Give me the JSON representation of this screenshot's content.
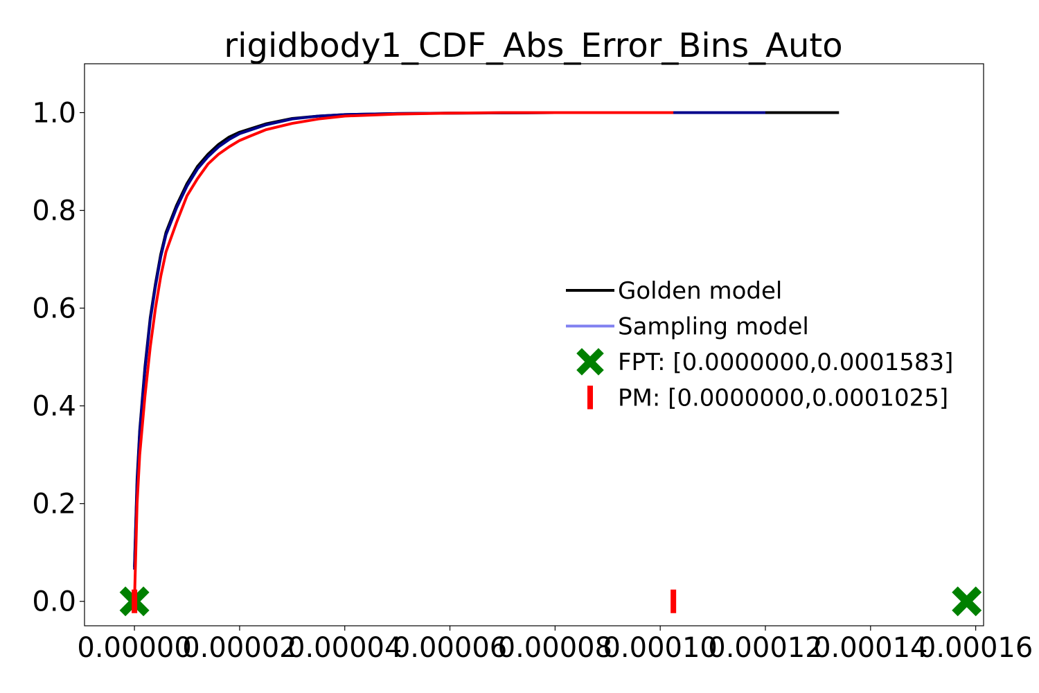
{
  "chart_data": {
    "type": "line",
    "title": "rigidbody1_CDF_Abs_Error_Bins_Auto",
    "xlabel": "",
    "ylabel": "",
    "xlim": [
      -9.5e-06,
      0.0001615
    ],
    "ylim": [
      -0.05,
      1.1
    ],
    "x_ticks": [
      0.0,
      2e-05,
      4e-05,
      6e-05,
      8e-05,
      0.0001,
      0.00012,
      0.00014,
      0.00016
    ],
    "x_tick_labels": [
      "0.00000",
      "0.00002",
      "0.00004",
      "0.00006",
      "0.00008",
      "0.00010",
      "0.00012",
      "0.00014",
      "0.00016"
    ],
    "y_ticks": [
      0.0,
      0.2,
      0.4,
      0.6,
      0.8,
      1.0
    ],
    "y_tick_labels": [
      "0.0",
      "0.2",
      "0.4",
      "0.6",
      "0.8",
      "1.0"
    ],
    "grid": false,
    "legend_position": "center-right",
    "series": [
      {
        "name": "Golden model",
        "kind": "line",
        "color": "#000000",
        "points": [
          [
            0.0,
            0.07
          ],
          [
            5e-07,
            0.25
          ],
          [
            1e-06,
            0.35
          ],
          [
            2e-06,
            0.48
          ],
          [
            3e-06,
            0.58
          ],
          [
            4e-06,
            0.65
          ],
          [
            5e-06,
            0.71
          ],
          [
            6e-06,
            0.755
          ],
          [
            8e-06,
            0.81
          ],
          [
            1e-05,
            0.855
          ],
          [
            1.2e-05,
            0.89
          ],
          [
            1.4e-05,
            0.915
          ],
          [
            1.6e-05,
            0.935
          ],
          [
            1.8e-05,
            0.95
          ],
          [
            2e-05,
            0.96
          ],
          [
            2.5e-05,
            0.977
          ],
          [
            3e-05,
            0.988
          ],
          [
            3.5e-05,
            0.993
          ],
          [
            4e-05,
            0.996
          ],
          [
            5e-05,
            0.998
          ],
          [
            6e-05,
            0.999
          ],
          [
            8e-05,
            1.0
          ],
          [
            0.0001,
            1.0
          ],
          [
            0.000134,
            1.0
          ]
        ]
      },
      {
        "name": "Sampling model",
        "kind": "line",
        "color": "#00008b",
        "points": [
          [
            0.0,
            0.065
          ],
          [
            5e-07,
            0.24
          ],
          [
            1e-06,
            0.345
          ],
          [
            2e-06,
            0.475
          ],
          [
            3e-06,
            0.575
          ],
          [
            4e-06,
            0.645
          ],
          [
            5e-06,
            0.705
          ],
          [
            6e-06,
            0.75
          ],
          [
            8e-06,
            0.805
          ],
          [
            1e-05,
            0.85
          ],
          [
            1.2e-05,
            0.885
          ],
          [
            1.4e-05,
            0.91
          ],
          [
            1.6e-05,
            0.93
          ],
          [
            1.8e-05,
            0.945
          ],
          [
            2e-05,
            0.957
          ],
          [
            2.5e-05,
            0.975
          ],
          [
            3e-05,
            0.987
          ],
          [
            3.5e-05,
            0.993
          ],
          [
            4e-05,
            0.996
          ],
          [
            5e-05,
            0.998
          ],
          [
            6e-05,
            0.999
          ],
          [
            8e-05,
            1.0
          ],
          [
            0.00012,
            1.0
          ]
        ]
      },
      {
        "name": "",
        "kind": "line",
        "color": "#ff0000",
        "points": [
          [
            0.0,
            0.0
          ],
          [
            5e-07,
            0.2
          ],
          [
            1e-06,
            0.3
          ],
          [
            2e-06,
            0.42
          ],
          [
            3e-06,
            0.52
          ],
          [
            4e-06,
            0.6
          ],
          [
            5e-06,
            0.665
          ],
          [
            6e-06,
            0.715
          ],
          [
            8e-06,
            0.775
          ],
          [
            1e-05,
            0.83
          ],
          [
            1.2e-05,
            0.865
          ],
          [
            1.4e-05,
            0.895
          ],
          [
            1.6e-05,
            0.915
          ],
          [
            1.8e-05,
            0.93
          ],
          [
            2e-05,
            0.943
          ],
          [
            2.2e-05,
            0.952
          ],
          [
            2.5e-05,
            0.965
          ],
          [
            3e-05,
            0.978
          ],
          [
            3.5e-05,
            0.987
          ],
          [
            4e-05,
            0.993
          ],
          [
            5e-05,
            0.997
          ],
          [
            6e-05,
            0.999
          ],
          [
            7e-05,
            1.0
          ],
          [
            0.0001025,
            1.0
          ]
        ]
      },
      {
        "name": "FPT: [0.0000000,0.0001583]",
        "kind": "marker",
        "marker": "X",
        "color": "#008000",
        "points": [
          [
            0.0,
            0.0
          ],
          [
            0.0001583,
            0.0
          ]
        ]
      },
      {
        "name": "PM: [0.0000000,0.0001025]",
        "kind": "marker",
        "marker": "|",
        "color": "#ff0000",
        "points": [
          [
            0.0,
            0.0
          ],
          [
            0.0001025,
            0.0
          ]
        ]
      }
    ]
  }
}
